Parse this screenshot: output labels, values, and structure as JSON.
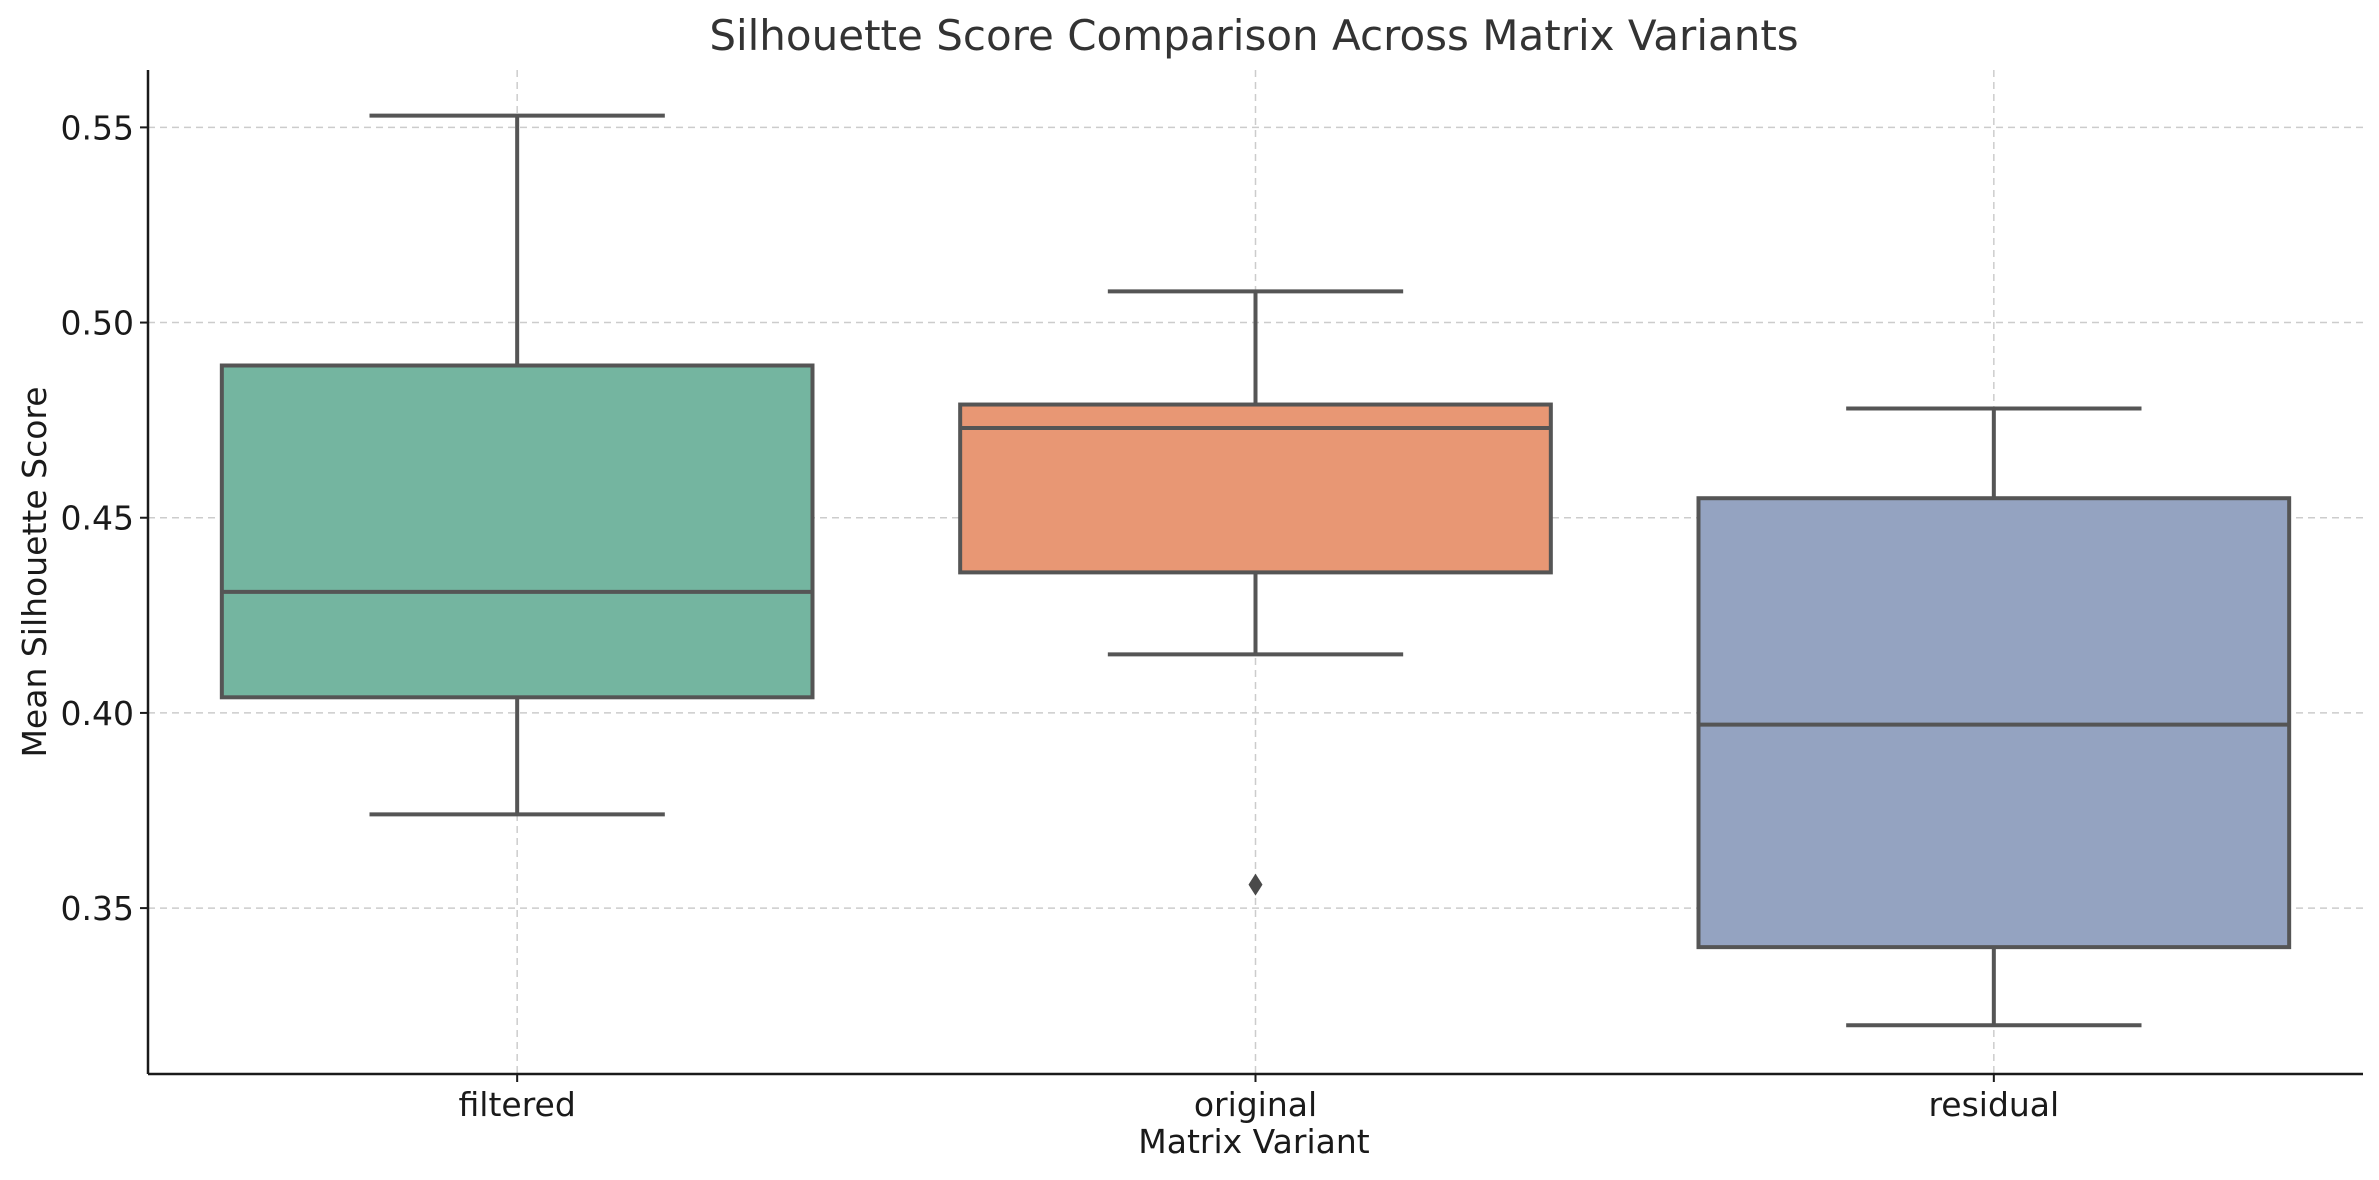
{
  "chart_data": {
    "type": "box",
    "title": "Silhouette Score Comparison Across Matrix Variants",
    "xlabel": "Matrix Variant",
    "ylabel": "Mean Silhouette Score",
    "ylim": [
      0.3075,
      0.5647
    ],
    "yticks": [
      0.35,
      0.4,
      0.45,
      0.5,
      0.55
    ],
    "ytick_labels": [
      "0.35",
      "0.40",
      "0.45",
      "0.50",
      "0.55"
    ],
    "grid": true,
    "categories": [
      "filtered",
      "original",
      "residual"
    ],
    "colors": [
      "#74b5a0",
      "#e89774",
      "#94a3c1"
    ],
    "boxes": [
      {
        "category": "filtered",
        "whisker_low": 0.374,
        "q1": 0.404,
        "median": 0.431,
        "q3": 0.489,
        "whisker_high": 0.553,
        "outliers": []
      },
      {
        "category": "original",
        "whisker_low": 0.415,
        "q1": 0.436,
        "median": 0.473,
        "q3": 0.479,
        "whisker_high": 0.508,
        "outliers": [
          0.356
        ]
      },
      {
        "category": "residual",
        "whisker_low": 0.32,
        "q1": 0.34,
        "median": 0.397,
        "q3": 0.455,
        "whisker_high": 0.478,
        "outliers": []
      }
    ]
  }
}
